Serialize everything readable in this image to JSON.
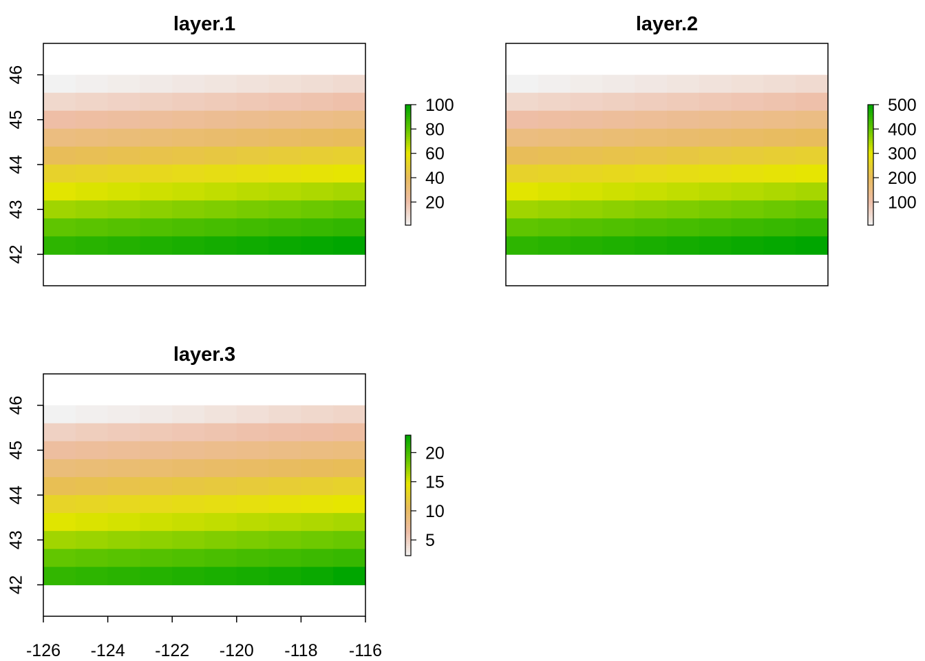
{
  "chart_data": [
    {
      "type": "heatmap",
      "title": "layer.1",
      "xlabel": "",
      "ylabel": "",
      "xlim": [
        -126,
        -116
      ],
      "ylim": [
        41.3,
        46.7
      ],
      "x_extent": [
        -126,
        -116
      ],
      "y_extent": [
        42,
        46
      ],
      "ncol": 10,
      "nrow": 10,
      "value_range": [
        1,
        100
      ],
      "values": [
        [
          1,
          2,
          3,
          4,
          5,
          6,
          7,
          8,
          9,
          10
        ],
        [
          11,
          12,
          13,
          14,
          15,
          16,
          17,
          18,
          19,
          20
        ],
        [
          21,
          22,
          23,
          24,
          25,
          26,
          27,
          28,
          29,
          30
        ],
        [
          31,
          32,
          33,
          34,
          35,
          36,
          37,
          38,
          39,
          40
        ],
        [
          41,
          42,
          43,
          44,
          45,
          46,
          47,
          48,
          49,
          50
        ],
        [
          51,
          52,
          53,
          54,
          55,
          56,
          57,
          58,
          59,
          60
        ],
        [
          61,
          62,
          63,
          64,
          65,
          66,
          67,
          68,
          69,
          70
        ],
        [
          71,
          72,
          73,
          74,
          75,
          76,
          77,
          78,
          79,
          80
        ],
        [
          81,
          82,
          83,
          84,
          85,
          86,
          87,
          88,
          89,
          90
        ],
        [
          91,
          92,
          93,
          94,
          95,
          96,
          97,
          98,
          99,
          100
        ]
      ],
      "y_ticks": [
        42,
        43,
        44,
        45,
        46
      ],
      "y_tick_labels": [
        "42",
        "43",
        "44",
        "45",
        "46"
      ],
      "x_ticks": [],
      "x_tick_labels": [],
      "legend": {
        "ticks": [
          20,
          40,
          60,
          80,
          100
        ],
        "labels": [
          "20",
          "40",
          "60",
          "80",
          "100"
        ],
        "min": 1,
        "max": 100
      }
    },
    {
      "type": "heatmap",
      "title": "layer.2",
      "xlabel": "",
      "ylabel": "",
      "xlim": [
        -126,
        -116
      ],
      "ylim": [
        41.3,
        46.7
      ],
      "x_extent": [
        -126,
        -116
      ],
      "y_extent": [
        42,
        46
      ],
      "ncol": 10,
      "nrow": 10,
      "value_range": [
        5,
        500
      ],
      "values": [
        [
          5,
          10,
          15,
          20,
          25,
          30,
          35,
          40,
          45,
          50
        ],
        [
          55,
          60,
          65,
          70,
          75,
          80,
          85,
          90,
          95,
          100
        ],
        [
          105,
          110,
          115,
          120,
          125,
          130,
          135,
          140,
          145,
          150
        ],
        [
          155,
          160,
          165,
          170,
          175,
          180,
          185,
          190,
          195,
          200
        ],
        [
          205,
          210,
          215,
          220,
          225,
          230,
          235,
          240,
          245,
          250
        ],
        [
          255,
          260,
          265,
          270,
          275,
          280,
          285,
          290,
          295,
          300
        ],
        [
          305,
          310,
          315,
          320,
          325,
          330,
          335,
          340,
          345,
          350
        ],
        [
          355,
          360,
          365,
          370,
          375,
          380,
          385,
          390,
          395,
          400
        ],
        [
          405,
          410,
          415,
          420,
          425,
          430,
          435,
          440,
          445,
          450
        ],
        [
          455,
          460,
          465,
          470,
          475,
          480,
          485,
          490,
          495,
          500
        ]
      ],
      "y_ticks": [],
      "y_tick_labels": [],
      "x_ticks": [],
      "x_tick_labels": [],
      "legend": {
        "ticks": [
          100,
          200,
          300,
          400,
          500
        ],
        "labels": [
          "100",
          "200",
          "300",
          "400",
          "500"
        ],
        "min": 5,
        "max": 500
      }
    },
    {
      "type": "heatmap",
      "title": "layer.3",
      "xlabel": "",
      "ylabel": "",
      "xlim": [
        -126,
        -116
      ],
      "ylim": [
        41.3,
        46.7
      ],
      "x_extent": [
        -126,
        -116
      ],
      "y_extent": [
        42,
        46
      ],
      "ncol": 10,
      "nrow": 10,
      "value_range": [
        2.3,
        23
      ],
      "values": [
        [
          2.3,
          2.5,
          2.7,
          2.9,
          3.2,
          3.5,
          3.8,
          4.1,
          4.4,
          4.6
        ],
        [
          4.9,
          5.2,
          5.4,
          5.6,
          5.8,
          6.0,
          6.2,
          6.4,
          6.5,
          6.7
        ],
        [
          6.9,
          7.1,
          7.3,
          7.5,
          7.7,
          7.9,
          8.1,
          8.3,
          8.5,
          8.7
        ],
        [
          8.9,
          9.1,
          9.3,
          9.5,
          9.7,
          9.9,
          10.1,
          10.3,
          10.5,
          10.7
        ],
        [
          10.9,
          11.1,
          11.3,
          11.5,
          11.7,
          11.9,
          12.1,
          12.3,
          12.5,
          12.7
        ],
        [
          12.9,
          13.1,
          13.3,
          13.5,
          13.7,
          13.9,
          14.1,
          14.3,
          14.5,
          14.7
        ],
        [
          14.9,
          15.1,
          15.3,
          15.5,
          15.7,
          15.9,
          16.1,
          16.3,
          16.5,
          16.7
        ],
        [
          16.9,
          17.1,
          17.3,
          17.5,
          17.7,
          17.9,
          18.1,
          18.3,
          18.5,
          18.7
        ],
        [
          18.9,
          19.1,
          19.3,
          19.5,
          19.7,
          19.9,
          20.1,
          20.3,
          20.5,
          20.7
        ],
        [
          20.9,
          21.1,
          21.3,
          21.5,
          21.7,
          21.9,
          22.1,
          22.3,
          22.6,
          23.0
        ]
      ],
      "y_ticks": [
        42,
        43,
        44,
        45,
        46
      ],
      "y_tick_labels": [
        "42",
        "43",
        "44",
        "45",
        "46"
      ],
      "x_ticks": [
        -126,
        -124,
        -122,
        -120,
        -118,
        -116
      ],
      "x_tick_labels": [
        "-126",
        "-124",
        "-122",
        "-120",
        "-118",
        "-116"
      ],
      "legend": {
        "ticks": [
          5,
          10,
          15,
          20
        ],
        "labels": [
          "5",
          "10",
          "15",
          "20"
        ],
        "min": 2.3,
        "max": 23
      }
    }
  ],
  "colors": {
    "palette_stops": [
      "#F2F2F2",
      "#EEBEA7",
      "#E8BC5B",
      "#E6E600",
      "#63C600",
      "#00A600"
    ],
    "frame": "#000000",
    "background": "#FFFFFF"
  }
}
